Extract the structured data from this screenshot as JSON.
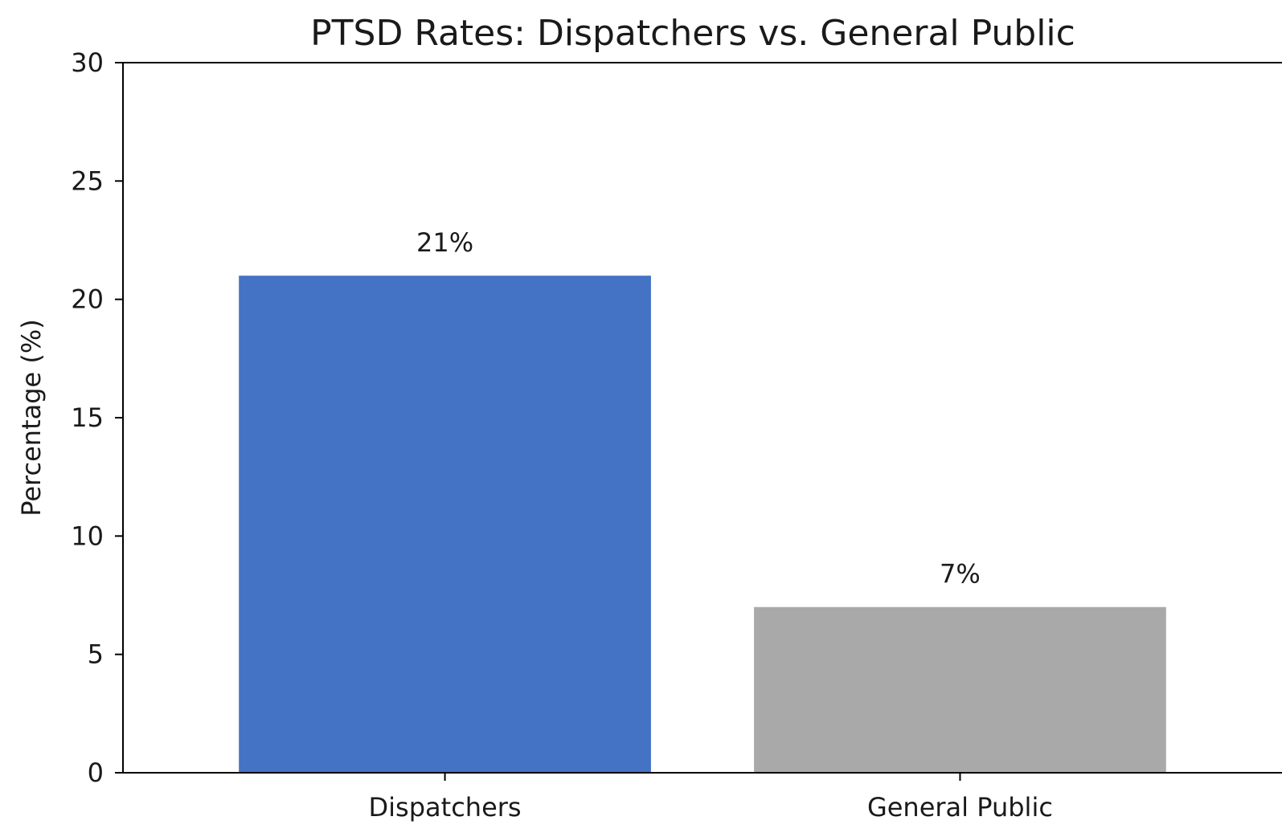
{
  "chart_data": {
    "type": "bar",
    "title": "PTSD Rates: Dispatchers vs. General Public",
    "xlabel": "",
    "ylabel": "Percentage (%)",
    "categories": [
      "Dispatchers",
      "General Public"
    ],
    "values": [
      21,
      7
    ],
    "data_labels": [
      "21%",
      "7%"
    ],
    "colors": [
      "#4472c4",
      "#a9a9a9"
    ],
    "ylim": [
      0,
      30
    ],
    "yticks": [
      0,
      5,
      10,
      15,
      20,
      25,
      30
    ],
    "ytick_labels": [
      "0",
      "5",
      "10",
      "15",
      "20",
      "25",
      "30"
    ],
    "grid": false,
    "legend": null
  }
}
